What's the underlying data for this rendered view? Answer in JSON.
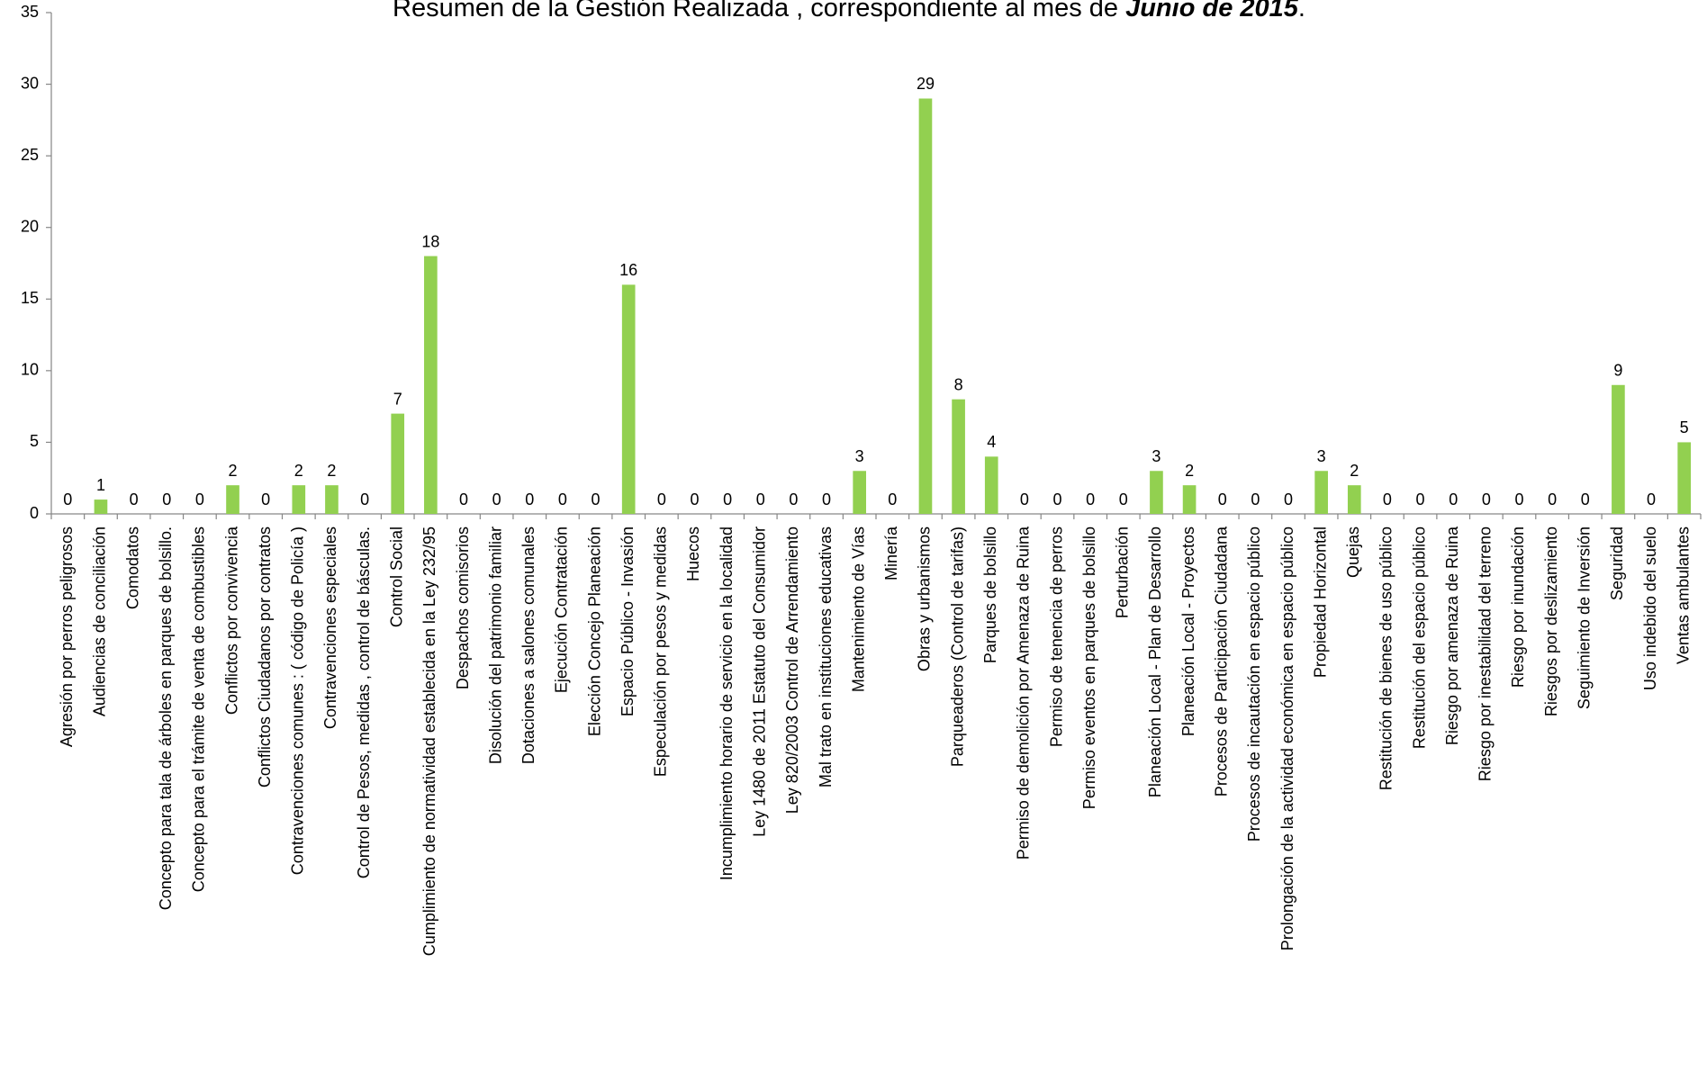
{
  "chart_data": {
    "type": "bar",
    "title": {
      "text": "Resumen de  la Gestión Realizada , correspondiente al mes  de ",
      "emphasis": "Junio de 2015",
      "end": "."
    },
    "categories": [
      "Agresión por perros peligrosos",
      "Audiencias de conciliación",
      "Comodatos",
      "Concepto para  tala de árboles en parques de bolsillo.",
      "Concepto para el trámite de venta de combustibles",
      "Conflictos  por convivencia",
      "Conflictos Ciudadanos  por contratos",
      "Contravenciones  comunes : ( código de Policía )",
      "Contravenciones especiales",
      "Control de Pesos, medidas , control de básculas.",
      "Control Social",
      "Cumplimiento de normatividad establecida en  la Ley 232/95",
      "Despachos comisorios",
      "Disolución del patrimonio familiar",
      "Dotaciones a salones comunales",
      "Ejecución Contratación",
      "Elección Concejo Planeación",
      "Espacio Público - Invasión",
      "Especulación por pesos y medidas",
      "Huecos",
      "Incumplimiento horario de servicio en la localidad",
      "Ley 1480 de 2011 Estatuto del Consumidor",
      "Ley 820/2003 Control de Arrendamiento",
      "Mal trato en  instituciones educativas",
      "Mantenimiento de  Vías",
      "Minería",
      "Obras y urbanismos",
      "Parqueaderos (Control de tarifas)",
      "Parques de bolsillo",
      "Permiso  de demolición por Amenaza de Ruina",
      "Permiso de tenencia de perros",
      "Permiso eventos en parques de bolsillo",
      "Perturbación",
      "Planeación Local - Plan de Desarrollo",
      "Planeación Local - Proyectos",
      "Procesos  de  Participación Ciudadana",
      "Procesos de incautación en espacio público",
      "Prolongación de  la actividad económica en espacio público",
      "Propiedad Horizontal",
      "Quejas",
      "Restitución de bienes de uso público",
      "Restitución del espacio público",
      "Riesgo  por amenaza de Ruina",
      "Riesgo por inestabilidad del terreno",
      "Riesgo por inundación",
      "Riesgos por deslizamiento",
      "Seguimiento de Inversión",
      "Seguridad",
      "Uso indebido del suelo",
      "Ventas ambulantes"
    ],
    "values": [
      0,
      1,
      0,
      0,
      0,
      2,
      0,
      2,
      2,
      0,
      7,
      18,
      0,
      0,
      0,
      0,
      0,
      16,
      0,
      0,
      0,
      0,
      0,
      0,
      3,
      0,
      29,
      8,
      4,
      0,
      0,
      0,
      0,
      3,
      2,
      0,
      0,
      0,
      3,
      2,
      0,
      0,
      0,
      0,
      0,
      0,
      0,
      9,
      0,
      5
    ],
    "color": "#92d050",
    "ylim": [
      0,
      35
    ],
    "yticks": [
      0,
      5,
      10,
      15,
      20,
      25,
      30,
      35
    ]
  }
}
